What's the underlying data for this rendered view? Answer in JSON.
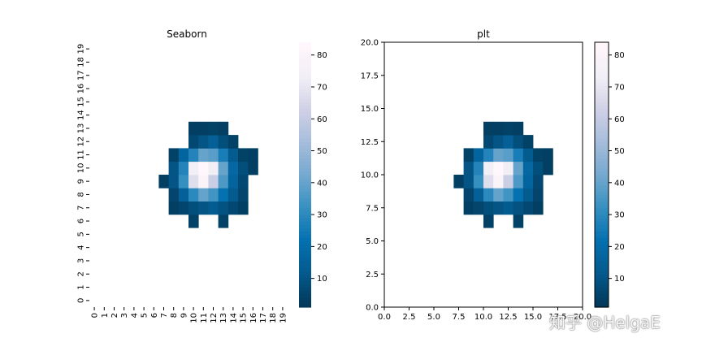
{
  "watermark": "知乎 @HelgaE",
  "colormap": [
    "#023858",
    "#045a8d",
    "#0570b0",
    "#3690c0",
    "#74a9cf",
    "#a6bddb",
    "#d0d1e6",
    "#f1eef6",
    "#fff7fb"
  ],
  "chart_data": [
    {
      "type": "heatmap",
      "title": "Seaborn",
      "xlabel": "",
      "ylabel": "",
      "x_ticklabels": [
        "0",
        "1",
        "2",
        "3",
        "4",
        "5",
        "6",
        "7",
        "8",
        "9",
        "10",
        "11",
        "12",
        "13",
        "14",
        "15",
        "16",
        "17",
        "18",
        "19"
      ],
      "y_ticklabels": [
        "0",
        "1",
        "2",
        "3",
        "4",
        "5",
        "6",
        "7",
        "8",
        "9",
        "10",
        "11",
        "12",
        "13",
        "14",
        "15",
        "16",
        "17",
        "18",
        "19"
      ],
      "vmin": 1,
      "vmax": 84,
      "colorbar_ticks": [
        "10",
        "20",
        "30",
        "40",
        "50",
        "60",
        "70",
        "80"
      ],
      "grid": false
    },
    {
      "type": "heatmap",
      "title": "plt",
      "xlabel": "",
      "ylabel": "",
      "xlim": [
        0,
        20
      ],
      "ylim": [
        0,
        20
      ],
      "x_ticklabels": [
        "0.0",
        "2.5",
        "5.0",
        "7.5",
        "10.0",
        "12.5",
        "15.0",
        "17.5",
        "20.0"
      ],
      "y_ticklabels": [
        "0.0",
        "2.5",
        "5.0",
        "7.5",
        "10.0",
        "12.5",
        "15.0",
        "17.5",
        "20.0"
      ],
      "vmin": 1,
      "vmax": 84,
      "colorbar_ticks": [
        "10",
        "20",
        "30",
        "40",
        "50",
        "60",
        "70",
        "80"
      ],
      "grid": false
    }
  ],
  "cells": [
    {
      "x": 10,
      "y": 6,
      "v": 4
    },
    {
      "x": 13,
      "y": 6,
      "v": 4
    },
    {
      "x": 8,
      "y": 7,
      "v": 3
    },
    {
      "x": 9,
      "y": 7,
      "v": 5
    },
    {
      "x": 10,
      "y": 7,
      "v": 8
    },
    {
      "x": 11,
      "y": 7,
      "v": 10
    },
    {
      "x": 12,
      "y": 7,
      "v": 12
    },
    {
      "x": 13,
      "y": 7,
      "v": 9
    },
    {
      "x": 14,
      "y": 7,
      "v": 6
    },
    {
      "x": 15,
      "y": 7,
      "v": 3
    },
    {
      "x": 8,
      "y": 8,
      "v": 5
    },
    {
      "x": 9,
      "y": 8,
      "v": 14
    },
    {
      "x": 10,
      "y": 8,
      "v": 30
    },
    {
      "x": 11,
      "y": 8,
      "v": 40
    },
    {
      "x": 12,
      "y": 8,
      "v": 34
    },
    {
      "x": 13,
      "y": 8,
      "v": 22
    },
    {
      "x": 14,
      "y": 8,
      "v": 12
    },
    {
      "x": 15,
      "y": 8,
      "v": 5
    },
    {
      "x": 7,
      "y": 9,
      "v": 3
    },
    {
      "x": 8,
      "y": 9,
      "v": 10
    },
    {
      "x": 9,
      "y": 9,
      "v": 32
    },
    {
      "x": 10,
      "y": 9,
      "v": 68
    },
    {
      "x": 11,
      "y": 9,
      "v": 80
    },
    {
      "x": 12,
      "y": 9,
      "v": 62
    },
    {
      "x": 13,
      "y": 9,
      "v": 36
    },
    {
      "x": 14,
      "y": 9,
      "v": 16
    },
    {
      "x": 15,
      "y": 9,
      "v": 6
    },
    {
      "x": 8,
      "y": 10,
      "v": 10
    },
    {
      "x": 9,
      "y": 10,
      "v": 28
    },
    {
      "x": 10,
      "y": 10,
      "v": 75
    },
    {
      "x": 11,
      "y": 10,
      "v": 84
    },
    {
      "x": 12,
      "y": 10,
      "v": 74
    },
    {
      "x": 13,
      "y": 10,
      "v": 40
    },
    {
      "x": 14,
      "y": 10,
      "v": 18
    },
    {
      "x": 15,
      "y": 10,
      "v": 8
    },
    {
      "x": 16,
      "y": 10,
      "v": 3
    },
    {
      "x": 8,
      "y": 11,
      "v": 4
    },
    {
      "x": 9,
      "y": 11,
      "v": 16
    },
    {
      "x": 10,
      "y": 11,
      "v": 28
    },
    {
      "x": 11,
      "y": 11,
      "v": 40
    },
    {
      "x": 12,
      "y": 11,
      "v": 38
    },
    {
      "x": 13,
      "y": 11,
      "v": 26
    },
    {
      "x": 14,
      "y": 11,
      "v": 12
    },
    {
      "x": 15,
      "y": 11,
      "v": 4
    },
    {
      "x": 16,
      "y": 11,
      "v": 3
    },
    {
      "x": 10,
      "y": 12,
      "v": 6
    },
    {
      "x": 11,
      "y": 12,
      "v": 10
    },
    {
      "x": 12,
      "y": 12,
      "v": 14
    },
    {
      "x": 13,
      "y": 12,
      "v": 8
    },
    {
      "x": 14,
      "y": 12,
      "v": 4
    },
    {
      "x": 11,
      "y": 13,
      "v": 3
    },
    {
      "x": 12,
      "y": 13,
      "v": 4
    },
    {
      "x": 13,
      "y": 13,
      "v": 3
    },
    {
      "x": 10,
      "y": 13,
      "v": 3
    }
  ]
}
